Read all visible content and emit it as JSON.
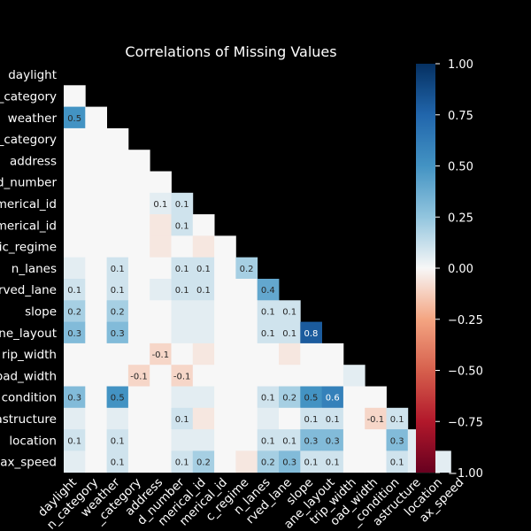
{
  "chart_data": {
    "type": "heatmap",
    "title": "Correlations of Missing Values",
    "variables": [
      "daylight",
      "light_category",
      "weather",
      "weather_category",
      "address",
      "road_number",
      "numerical_id",
      "alphanumerical_id",
      "traffic_regime",
      "n_lanes",
      "reserved_lane",
      "slope",
      "plane_layout",
      "strip_width",
      "road_width",
      "condition",
      "infrastructure",
      "location",
      "max_speed"
    ],
    "y_tick_labels": [
      "daylight",
      "_category",
      "weather",
      "_category",
      "address",
      "d_number",
      "merical_id",
      "merical_id",
      "ic_regime",
      "n_lanes",
      "rved_lane",
      "slope",
      "ne_layout",
      "rip_width",
      "oad_width",
      "condition",
      "astructure",
      "location",
      "ax_speed"
    ],
    "x_tick_labels": [
      "daylight",
      "n_category",
      "weather",
      "_category",
      "address",
      "d_number",
      "merical_id",
      "merical_id",
      "c_regime",
      "n_lanes",
      "rved_lane",
      "slope",
      "ane_layout",
      "trip_width",
      "oad_width",
      "_condition",
      "astructure",
      "location",
      "ax_speed"
    ],
    "mask": "upper-triangle",
    "matrix": [
      [],
      [
        0.0
      ],
      [
        0.5,
        0.0
      ],
      [
        0.0,
        0.0,
        0.0
      ],
      [
        0.0,
        0.0,
        0.0,
        0.0
      ],
      [
        0.0,
        0.0,
        0.0,
        0.0,
        0.0
      ],
      [
        0.0,
        0.0,
        0.0,
        0.0,
        0.05,
        0.1
      ],
      [
        0.0,
        0.0,
        0.0,
        0.0,
        -0.05,
        0.1,
        0.0
      ],
      [
        0.0,
        0.0,
        0.0,
        0.0,
        -0.05,
        0.0,
        -0.05,
        0.0
      ],
      [
        0.05,
        0.0,
        0.1,
        0.0,
        0.0,
        0.1,
        0.1,
        0.0,
        0.2
      ],
      [
        0.1,
        0.0,
        0.1,
        0.0,
        0.05,
        0.1,
        0.1,
        0.0,
        0.0,
        0.4
      ],
      [
        0.2,
        0.0,
        0.2,
        0.0,
        0.0,
        0.05,
        0.05,
        0.0,
        0.0,
        0.1,
        0.1
      ],
      [
        0.3,
        0.0,
        0.3,
        0.0,
        0.0,
        0.05,
        0.05,
        0.0,
        0.0,
        0.1,
        0.1,
        0.8
      ],
      [
        0.0,
        0.0,
        0.0,
        0.0,
        -0.1,
        0.0,
        -0.05,
        0.0,
        0.0,
        0.0,
        -0.05,
        0.0,
        0.0
      ],
      [
        0.0,
        0.0,
        0.0,
        -0.1,
        0.0,
        -0.1,
        0.0,
        0.0,
        0.0,
        0.0,
        0.0,
        0.0,
        0.0,
        0.05
      ],
      [
        0.3,
        0.0,
        0.5,
        0.0,
        0.0,
        0.05,
        0.05,
        0.0,
        0.0,
        0.1,
        0.2,
        0.5,
        0.6,
        0.0,
        0.0
      ],
      [
        0.05,
        0.0,
        0.05,
        0.0,
        0.0,
        0.1,
        -0.05,
        0.0,
        0.0,
        0.05,
        0.0,
        0.1,
        0.1,
        0.0,
        -0.1,
        0.1
      ],
      [
        0.1,
        0.0,
        0.1,
        0.0,
        0.0,
        0.05,
        0.05,
        0.0,
        0.0,
        0.1,
        0.1,
        0.3,
        0.3,
        0.0,
        0.0,
        0.3,
        0.05
      ],
      [
        0.05,
        0.0,
        0.1,
        0.0,
        0.0,
        0.1,
        0.2,
        0.0,
        -0.05,
        0.2,
        0.3,
        0.1,
        0.1,
        0.0,
        0.0,
        0.1,
        0.05,
        0.05
      ]
    ],
    "annotations": [
      [
        2,
        0,
        "0.5"
      ],
      [
        6,
        4,
        "0.1"
      ],
      [
        6,
        5,
        "0.1"
      ],
      [
        7,
        5,
        "0.1"
      ],
      [
        9,
        2,
        "0.1"
      ],
      [
        9,
        5,
        "0.1"
      ],
      [
        9,
        6,
        "0.1"
      ],
      [
        9,
        8,
        "0.2"
      ],
      [
        10,
        0,
        "0.1"
      ],
      [
        10,
        2,
        "0.1"
      ],
      [
        10,
        5,
        "0.1"
      ],
      [
        10,
        6,
        "0.1"
      ],
      [
        10,
        9,
        "0.4"
      ],
      [
        11,
        0,
        "0.2"
      ],
      [
        11,
        2,
        "0.2"
      ],
      [
        11,
        9,
        "0.1"
      ],
      [
        11,
        10,
        "0.1"
      ],
      [
        12,
        0,
        "0.3"
      ],
      [
        12,
        2,
        "0.3"
      ],
      [
        12,
        9,
        "0.1"
      ],
      [
        12,
        10,
        "0.1"
      ],
      [
        12,
        11,
        "0.8"
      ],
      [
        13,
        4,
        "-0.1"
      ],
      [
        14,
        3,
        "-0.1"
      ],
      [
        14,
        5,
        "-0.1"
      ],
      [
        15,
        0,
        "0.3"
      ],
      [
        15,
        2,
        "0.5"
      ],
      [
        15,
        9,
        "0.1"
      ],
      [
        15,
        10,
        "0.2"
      ],
      [
        15,
        11,
        "0.5"
      ],
      [
        15,
        12,
        "0.6"
      ],
      [
        16,
        5,
        "0.1"
      ],
      [
        16,
        11,
        "0.1"
      ],
      [
        16,
        12,
        "0.1"
      ],
      [
        16,
        14,
        "-0.1"
      ],
      [
        16,
        15,
        "0.1"
      ],
      [
        17,
        0,
        "0.1"
      ],
      [
        17,
        2,
        "0.1"
      ],
      [
        17,
        9,
        "0.1"
      ],
      [
        17,
        10,
        "0.1"
      ],
      [
        17,
        11,
        "0.3"
      ],
      [
        17,
        12,
        "0.3"
      ],
      [
        17,
        15,
        "0.3"
      ],
      [
        18,
        2,
        "0.1"
      ],
      [
        18,
        5,
        "0.1"
      ],
      [
        18,
        6,
        "0.2"
      ],
      [
        18,
        9,
        "0.2"
      ],
      [
        18,
        10,
        "0.3"
      ],
      [
        18,
        11,
        "0.1"
      ],
      [
        18,
        12,
        "0.1"
      ],
      [
        18,
        15,
        "0.1"
      ]
    ],
    "vmin": -1.0,
    "vmax": 1.0,
    "colormap": "RdBu",
    "colorbar_ticks": [
      "1.00",
      "0.75",
      "0.50",
      "0.25",
      "0.00",
      "−0.25",
      "−0.50",
      "−0.75",
      "−1.00"
    ],
    "colorbar_tick_values": [
      1.0,
      0.75,
      0.5,
      0.25,
      0.0,
      -0.25,
      -0.5,
      -0.75,
      -1.0
    ],
    "grid": false,
    "legend": "colorbar-right",
    "background": "#000000",
    "text_color": "#ffffff"
  }
}
